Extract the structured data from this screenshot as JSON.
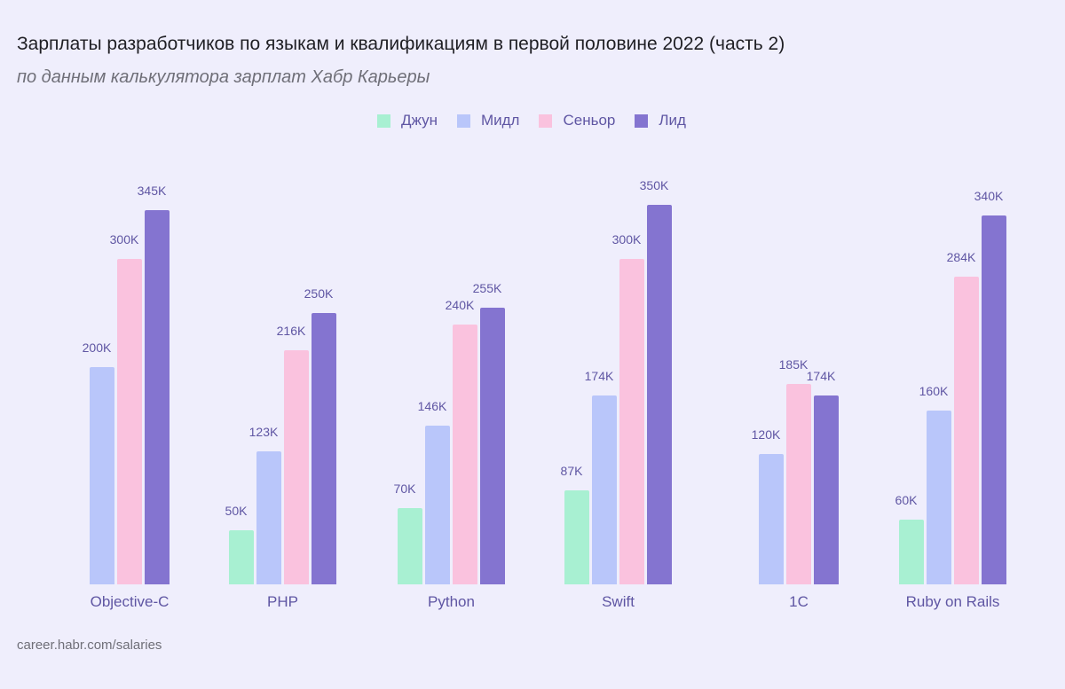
{
  "header": {
    "title": "Зарплаты разработчиков по языкам и квалификациям в первой половине 2022 (часть 2)",
    "subtitle": "по данным калькулятора зарплат Хабр Карьеры"
  },
  "legend": [
    {
      "label": "Джун",
      "color": "#a8f0d2"
    },
    {
      "label": "Мидл",
      "color": "#b9c6fa"
    },
    {
      "label": "Сеньор",
      "color": "#fac2de"
    },
    {
      "label": "Лид",
      "color": "#8474d0"
    }
  ],
  "source": "career.habr.com/salaries",
  "chart_data": {
    "type": "bar",
    "title": "Зарплаты разработчиков по языкам и квалификациям в первой половине 2022 (часть 2)",
    "subtitle": "по данным калькулятора зарплат Хабр Карьеры",
    "xlabel": "",
    "ylabel": "",
    "unit": "K",
    "grid": false,
    "legend_position": "top",
    "categories": [
      "Objective-C",
      "PHP",
      "Python",
      "Swift",
      "1C",
      "Ruby on Rails"
    ],
    "series": [
      {
        "name": "Джун",
        "color": "#a8f0d2",
        "values": [
          null,
          50,
          70,
          87,
          null,
          60
        ],
        "labels": [
          "",
          "50K",
          "70K",
          "87K",
          "",
          "60K"
        ]
      },
      {
        "name": "Мидл",
        "color": "#b9c6fa",
        "values": [
          200,
          123,
          146,
          174,
          120,
          160
        ],
        "labels": [
          "200K",
          "123K",
          "146K",
          "174K",
          "120K",
          "160K"
        ]
      },
      {
        "name": "Сеньор",
        "color": "#fac2de",
        "values": [
          300,
          216,
          240,
          300,
          185,
          284
        ],
        "labels": [
          "300K",
          "216K",
          "240K",
          "300K",
          "185K",
          "284K"
        ]
      },
      {
        "name": "Лид",
        "color": "#8474d0",
        "values": [
          345,
          250,
          255,
          350,
          174,
          340
        ],
        "labels": [
          "345K",
          "250K",
          "255K",
          "350K",
          "174K",
          "340K"
        ]
      }
    ],
    "ylim": [
      0,
      350
    ]
  }
}
